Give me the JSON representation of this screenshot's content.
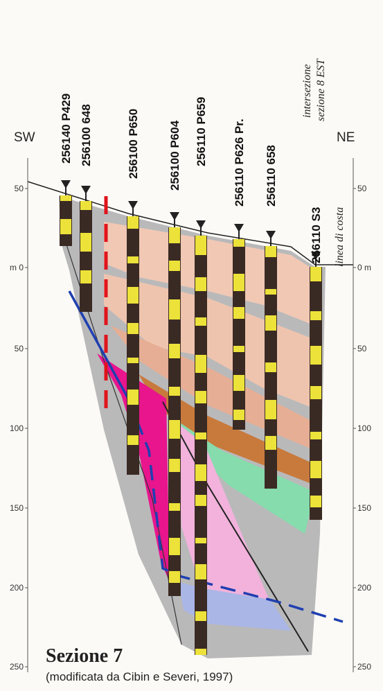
{
  "header": {
    "sw": "SW",
    "ne": "NE"
  },
  "wells": [
    {
      "label": "256140 P429"
    },
    {
      "label": "256100 648"
    },
    {
      "label": "256100 P650"
    },
    {
      "label": "256100 P604"
    },
    {
      "label": "256110 P659"
    },
    {
      "label": "256110 P626 Pr."
    },
    {
      "label": "256110 658"
    },
    {
      "label": "256110 S3"
    }
  ],
  "annotations": {
    "intersection": "intersezione",
    "section": "sezione 8 EST",
    "coastline": "linea di costa"
  },
  "left_axis": [
    "50",
    "m 0",
    "50",
    "100",
    "150",
    "200",
    "250"
  ],
  "right_axis": [
    "50",
    "0 m",
    "50",
    "100",
    "150",
    "200",
    "250"
  ],
  "footer": {
    "title": "Sezione 7",
    "subtitle": "(modificata da Cibin e Severi, 1997)"
  }
}
